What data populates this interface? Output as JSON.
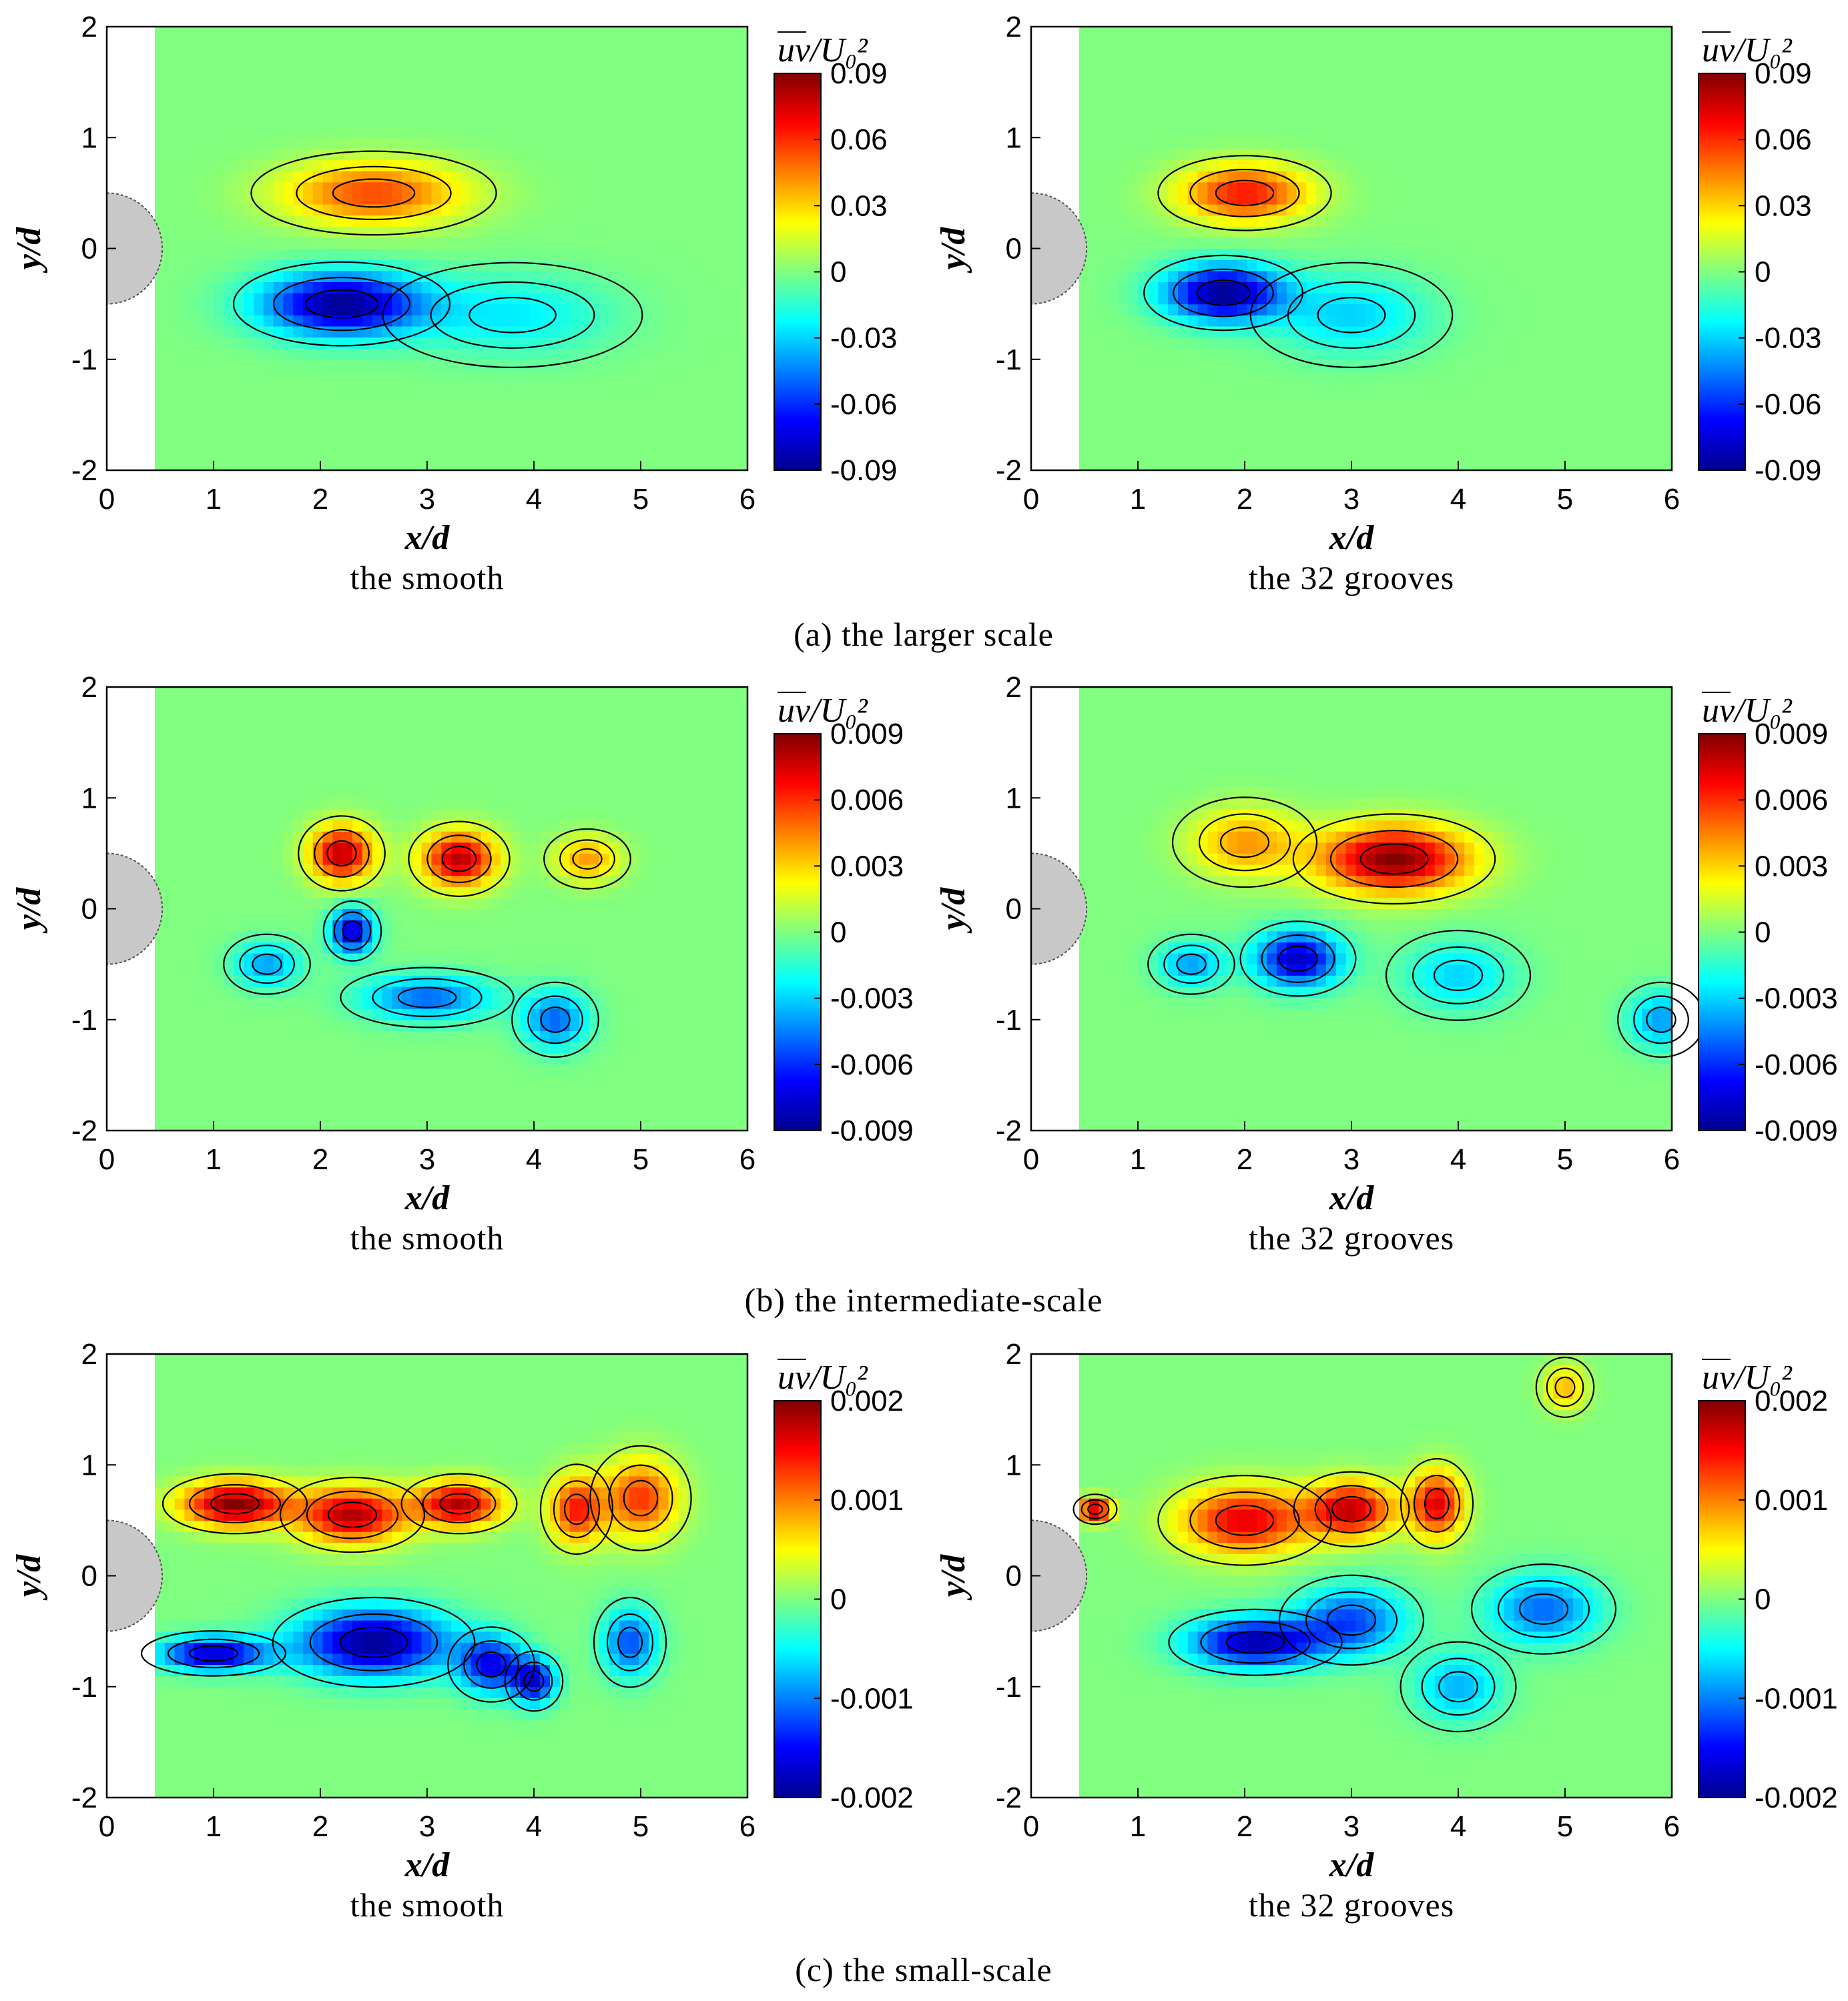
{
  "chart_data": [
    {
      "type": "heatmap",
      "row": "a",
      "col": 0,
      "xlabel": "x/d",
      "ylabel": "y/d",
      "xlim": [
        0,
        6
      ],
      "ylim": [
        -2,
        2
      ],
      "xticks": [
        "0",
        "1",
        "2",
        "3",
        "4",
        "5",
        "6"
      ],
      "yticks": [
        "2",
        "1",
        "0",
        "-1",
        "-2"
      ],
      "colorbar": {
        "title": "uv/U₀²",
        "ticks": [
          "0.09",
          "0.06",
          "0.03",
          "0",
          "-0.03",
          "-0.06",
          "-0.09"
        ],
        "min": -0.09,
        "max": 0.09
      },
      "caption": "the smooth",
      "blobs": [
        {
          "x": 2.5,
          "y": 0.5,
          "sx": 0.85,
          "sy": 0.28,
          "amp": 0.055
        },
        {
          "x": 2.2,
          "y": -0.5,
          "sx": 0.75,
          "sy": 0.28,
          "amp": -0.09
        },
        {
          "x": 3.8,
          "y": -0.6,
          "sx": 0.9,
          "sy": 0.35,
          "amp": -0.025
        }
      ]
    },
    {
      "type": "heatmap",
      "row": "a",
      "col": 1,
      "xlabel": "x/d",
      "ylabel": "y/d",
      "xlim": [
        0,
        6
      ],
      "ylim": [
        -2,
        2
      ],
      "xticks": [
        "0",
        "1",
        "2",
        "3",
        "4",
        "5",
        "6"
      ],
      "yticks": [
        "2",
        "1",
        "0",
        "-1",
        "-2"
      ],
      "colorbar": {
        "title": "uv/U₀²",
        "ticks": [
          "0.09",
          "0.06",
          "0.03",
          "0",
          "-0.03",
          "-0.06",
          "-0.09"
        ],
        "min": -0.09,
        "max": 0.09
      },
      "caption": "the 32 grooves",
      "blobs": [
        {
          "x": 2.0,
          "y": 0.5,
          "sx": 0.6,
          "sy": 0.25,
          "amp": 0.065
        },
        {
          "x": 1.8,
          "y": -0.4,
          "sx": 0.55,
          "sy": 0.25,
          "amp": -0.09
        },
        {
          "x": 3.0,
          "y": -0.6,
          "sx": 0.7,
          "sy": 0.35,
          "amp": -0.03
        }
      ]
    },
    {
      "type": "heatmap",
      "row": "b",
      "col": 0,
      "xlabel": "x/d",
      "ylabel": "y/d",
      "xlim": [
        0,
        6
      ],
      "ylim": [
        -2,
        2
      ],
      "xticks": [
        "0",
        "1",
        "2",
        "3",
        "4",
        "5",
        "6"
      ],
      "yticks": [
        "2",
        "1",
        "0",
        "-1",
        "-2"
      ],
      "colorbar": {
        "title": "uv/U₀²",
        "ticks": [
          "0.009",
          "0.006",
          "0.003",
          "0",
          "-0.003",
          "-0.006",
          "-0.009"
        ],
        "min": -0.009,
        "max": 0.009
      },
      "caption": "the smooth",
      "blobs": [
        {
          "x": 2.2,
          "y": 0.5,
          "sx": 0.3,
          "sy": 0.25,
          "amp": 0.008
        },
        {
          "x": 3.3,
          "y": 0.45,
          "sx": 0.35,
          "sy": 0.25,
          "amp": 0.008
        },
        {
          "x": 4.5,
          "y": 0.45,
          "sx": 0.3,
          "sy": 0.2,
          "amp": 0.004
        },
        {
          "x": 2.3,
          "y": -0.2,
          "sx": 0.2,
          "sy": 0.2,
          "amp": -0.008
        },
        {
          "x": 1.5,
          "y": -0.5,
          "sx": 0.3,
          "sy": 0.2,
          "amp": -0.004
        },
        {
          "x": 3.0,
          "y": -0.8,
          "sx": 0.6,
          "sy": 0.2,
          "amp": -0.005
        },
        {
          "x": 4.2,
          "y": -1.0,
          "sx": 0.3,
          "sy": 0.25,
          "amp": -0.005
        }
      ]
    },
    {
      "type": "heatmap",
      "row": "b",
      "col": 1,
      "xlabel": "x/d",
      "ylabel": "y/d",
      "xlim": [
        0,
        6
      ],
      "ylim": [
        -2,
        2
      ],
      "xticks": [
        "0",
        "1",
        "2",
        "3",
        "4",
        "5",
        "6"
      ],
      "yticks": [
        "2",
        "1",
        "0",
        "-1",
        "-2"
      ],
      "colorbar": {
        "title": "uv/U₀²",
        "ticks": [
          "0.009",
          "0.006",
          "0.003",
          "0",
          "-0.003",
          "-0.006",
          "-0.009"
        ],
        "min": -0.009,
        "max": 0.009
      },
      "caption": "the 32 grooves",
      "blobs": [
        {
          "x": 3.4,
          "y": 0.45,
          "sx": 0.7,
          "sy": 0.3,
          "amp": 0.009
        },
        {
          "x": 2.0,
          "y": 0.6,
          "sx": 0.5,
          "sy": 0.3,
          "amp": 0.004
        },
        {
          "x": 2.5,
          "y": -0.45,
          "sx": 0.4,
          "sy": 0.25,
          "amp": -0.008
        },
        {
          "x": 1.5,
          "y": -0.5,
          "sx": 0.3,
          "sy": 0.2,
          "amp": -0.004
        },
        {
          "x": 4.0,
          "y": -0.6,
          "sx": 0.5,
          "sy": 0.3,
          "amp": -0.003
        },
        {
          "x": 5.9,
          "y": -1.0,
          "sx": 0.3,
          "sy": 0.25,
          "amp": -0.004
        }
      ]
    },
    {
      "type": "heatmap",
      "row": "c",
      "col": 0,
      "xlabel": "x/d",
      "ylabel": "y/d",
      "xlim": [
        0,
        6
      ],
      "ylim": [
        -2,
        2
      ],
      "xticks": [
        "0",
        "1",
        "2",
        "3",
        "4",
        "5",
        "6"
      ],
      "yticks": [
        "2",
        "1",
        "0",
        "-1",
        "-2"
      ],
      "colorbar": {
        "title": "uv/U₀²",
        "ticks": [
          "0.002",
          "0.001",
          "0",
          "-0.001",
          "-0.002"
        ],
        "min": -0.002,
        "max": 0.002
      },
      "caption": "the smooth",
      "blobs": [
        {
          "x": 1.2,
          "y": 0.65,
          "sx": 0.5,
          "sy": 0.2,
          "amp": 0.002
        },
        {
          "x": 2.3,
          "y": 0.55,
          "sx": 0.5,
          "sy": 0.25,
          "amp": 0.0018
        },
        {
          "x": 3.3,
          "y": 0.65,
          "sx": 0.4,
          "sy": 0.2,
          "amp": 0.0018
        },
        {
          "x": 4.4,
          "y": 0.6,
          "sx": 0.25,
          "sy": 0.3,
          "amp": 0.0014
        },
        {
          "x": 5.0,
          "y": 0.7,
          "sx": 0.35,
          "sy": 0.35,
          "amp": 0.0013
        },
        {
          "x": 1.0,
          "y": -0.7,
          "sx": 0.5,
          "sy": 0.15,
          "amp": -0.0018
        },
        {
          "x": 2.5,
          "y": -0.6,
          "sx": 0.7,
          "sy": 0.3,
          "amp": -0.002
        },
        {
          "x": 3.6,
          "y": -0.8,
          "sx": 0.3,
          "sy": 0.25,
          "amp": -0.0015
        },
        {
          "x": 4.0,
          "y": -0.95,
          "sx": 0.2,
          "sy": 0.2,
          "amp": -0.0016
        },
        {
          "x": 4.9,
          "y": -0.6,
          "sx": 0.25,
          "sy": 0.3,
          "amp": -0.0012
        }
      ]
    },
    {
      "type": "heatmap",
      "row": "c",
      "col": 1,
      "xlabel": "x/d",
      "ylabel": "y/d",
      "xlim": [
        0,
        6
      ],
      "ylim": [
        -2,
        2
      ],
      "xticks": [
        "0",
        "1",
        "2",
        "3",
        "4",
        "5",
        "6"
      ],
      "yticks": [
        "2",
        "1",
        "0",
        "-1",
        "-2"
      ],
      "colorbar": {
        "title": "uv/U₀²",
        "ticks": [
          "0.002",
          "0.001",
          "0",
          "-0.001",
          "-0.002"
        ],
        "min": -0.002,
        "max": 0.002
      },
      "caption": "the 32 grooves",
      "blobs": [
        {
          "x": 0.6,
          "y": 0.6,
          "sx": 0.15,
          "sy": 0.1,
          "amp": 0.002
        },
        {
          "x": 2.0,
          "y": 0.5,
          "sx": 0.6,
          "sy": 0.3,
          "amp": 0.0016
        },
        {
          "x": 3.0,
          "y": 0.6,
          "sx": 0.4,
          "sy": 0.25,
          "amp": 0.0017
        },
        {
          "x": 3.8,
          "y": 0.65,
          "sx": 0.25,
          "sy": 0.3,
          "amp": 0.0016
        },
        {
          "x": 5.0,
          "y": 1.7,
          "sx": 0.2,
          "sy": 0.2,
          "amp": 0.0008
        },
        {
          "x": 2.1,
          "y": -0.6,
          "sx": 0.6,
          "sy": 0.22,
          "amp": -0.0019
        },
        {
          "x": 3.0,
          "y": -0.4,
          "sx": 0.5,
          "sy": 0.3,
          "amp": -0.0012
        },
        {
          "x": 4.8,
          "y": -0.3,
          "sx": 0.5,
          "sy": 0.3,
          "amp": -0.0011
        },
        {
          "x": 4.0,
          "y": -1.0,
          "sx": 0.4,
          "sy": 0.3,
          "amp": -0.0008
        }
      ]
    }
  ],
  "row_captions": {
    "a": "(a) the larger scale",
    "b": "(b) the intermediate-scale",
    "c": "(c) the small-scale"
  }
}
